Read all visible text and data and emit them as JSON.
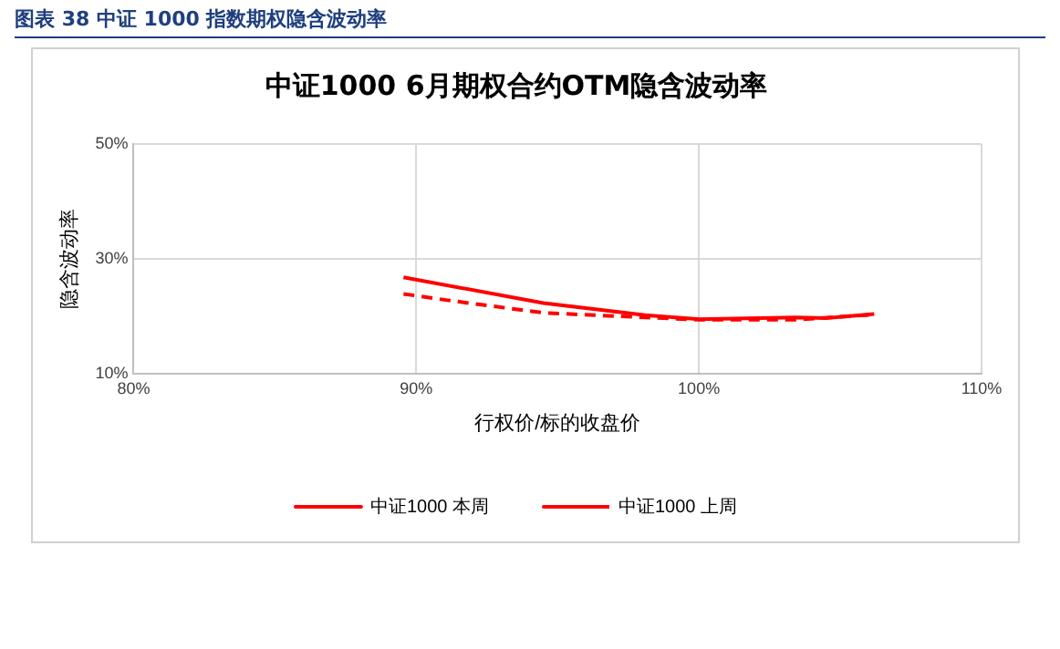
{
  "chart_data": {
    "type": "line",
    "title": "中证1000 6月期权合约OTM隐含波动率",
    "xlabel": "行权价/标的收盘价",
    "ylabel": "隐含波动率",
    "annotations": [
      "图表 38 中证 1000 指数期权隐含波动率"
    ],
    "series": [
      {
        "name": "中证1000 本周",
        "color": "#ff0000",
        "line_style": "solid",
        "x": [
          89.55,
          94.5,
          98.1,
          100,
          103.4,
          104.5,
          106.2
        ],
        "values": [
          26.8,
          22.3,
          20.2,
          19.5,
          19.8,
          19.7,
          20.4
        ]
      },
      {
        "name": "中证1000 上周",
        "color": "#ff0000",
        "line_style": "dashed",
        "x": [
          89.55,
          91.1,
          94.5,
          98.1,
          100,
          103.4,
          106.2
        ],
        "values": [
          23.9,
          22.8,
          20.6,
          19.8,
          19.4,
          19.4,
          20.3
        ]
      }
    ],
    "xlim": [
      80,
      110
    ],
    "xticks": [
      {
        "value": 80,
        "label": "80%"
      },
      {
        "value": 90,
        "label": "90%"
      },
      {
        "value": 100,
        "label": "100%"
      },
      {
        "value": 110,
        "label": "110%"
      }
    ],
    "ylim": [
      10,
      50
    ],
    "yticks": [
      {
        "value": 10,
        "label": "10%"
      },
      {
        "value": 30,
        "label": "30%"
      },
      {
        "value": 50,
        "label": "50%"
      }
    ],
    "grid": true,
    "legend": "bottom",
    "marker": "none"
  }
}
